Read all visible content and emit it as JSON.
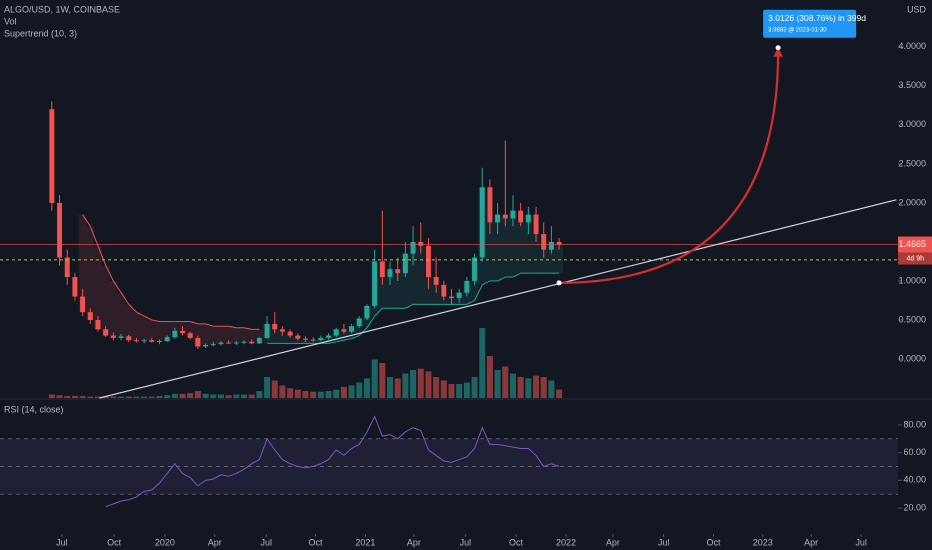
{
  "chart_data": [
    {
      "type": "candlestick",
      "title": "ALGO/USD, 1W, COINBASE",
      "volume_label": "Vol",
      "indicator_label": "Supertrend (10, 3)",
      "currency": "USD",
      "up_color": "#26a69a",
      "down_color": "#ef5350",
      "xlim": [
        -6.75,
        110.1
      ],
      "ylim": [
        -0.5,
        4.6
      ],
      "yticks": [
        {
          "value": 0,
          "label": "0.0000"
        },
        {
          "value": 0.5,
          "label": "0.5000"
        },
        {
          "value": 1,
          "label": "1.0000"
        },
        {
          "value": 1.5,
          "label": "1.5000"
        },
        {
          "value": 2,
          "label": "2.0000"
        },
        {
          "value": 2.5,
          "label": "2.5000"
        },
        {
          "value": 3,
          "label": "3.0000"
        },
        {
          "value": 3.5,
          "label": "3.5000"
        },
        {
          "value": 4,
          "label": "4.0000"
        }
      ],
      "ohlc": [
        [
          3.2,
          3.3,
          1.9,
          2.0
        ],
        [
          2.0,
          2.1,
          1.2,
          1.3
        ],
        [
          1.3,
          1.4,
          0.95,
          1.05
        ],
        [
          1.05,
          1.1,
          0.75,
          0.8
        ],
        [
          0.8,
          0.9,
          0.55,
          0.6
        ],
        [
          0.6,
          0.65,
          0.45,
          0.5
        ],
        [
          0.5,
          0.55,
          0.35,
          0.38
        ],
        [
          0.38,
          0.42,
          0.28,
          0.3
        ],
        [
          0.3,
          0.34,
          0.24,
          0.27
        ],
        [
          0.27,
          0.32,
          0.24,
          0.29
        ],
        [
          0.29,
          0.31,
          0.22,
          0.24
        ],
        [
          0.24,
          0.27,
          0.21,
          0.23
        ],
        [
          0.23,
          0.26,
          0.2,
          0.24
        ],
        [
          0.24,
          0.27,
          0.21,
          0.22
        ],
        [
          0.22,
          0.25,
          0.19,
          0.23
        ],
        [
          0.23,
          0.3,
          0.22,
          0.28
        ],
        [
          0.28,
          0.4,
          0.26,
          0.36
        ],
        [
          0.36,
          0.42,
          0.3,
          0.33
        ],
        [
          0.33,
          0.35,
          0.25,
          0.27
        ],
        [
          0.27,
          0.3,
          0.13,
          0.16
        ],
        [
          0.16,
          0.2,
          0.14,
          0.18
        ],
        [
          0.18,
          0.22,
          0.16,
          0.19
        ],
        [
          0.19,
          0.23,
          0.17,
          0.21
        ],
        [
          0.21,
          0.24,
          0.19,
          0.2
        ],
        [
          0.2,
          0.23,
          0.18,
          0.21
        ],
        [
          0.21,
          0.24,
          0.19,
          0.22
        ],
        [
          0.22,
          0.25,
          0.19,
          0.2
        ],
        [
          0.2,
          0.28,
          0.19,
          0.27
        ],
        [
          0.27,
          0.55,
          0.26,
          0.45
        ],
        [
          0.45,
          0.6,
          0.33,
          0.38
        ],
        [
          0.38,
          0.42,
          0.3,
          0.35
        ],
        [
          0.35,
          0.38,
          0.27,
          0.3
        ],
        [
          0.3,
          0.33,
          0.24,
          0.26
        ],
        [
          0.26,
          0.29,
          0.22,
          0.25
        ],
        [
          0.25,
          0.28,
          0.22,
          0.24
        ],
        [
          0.24,
          0.3,
          0.23,
          0.27
        ],
        [
          0.27,
          0.33,
          0.25,
          0.3
        ],
        [
          0.3,
          0.4,
          0.28,
          0.38
        ],
        [
          0.38,
          0.45,
          0.32,
          0.35
        ],
        [
          0.35,
          0.45,
          0.33,
          0.42
        ],
        [
          0.42,
          0.55,
          0.4,
          0.52
        ],
        [
          0.52,
          0.7,
          0.5,
          0.68
        ],
        [
          0.68,
          1.4,
          0.65,
          1.25
        ],
        [
          1.25,
          1.9,
          0.95,
          1.05
        ],
        [
          1.05,
          1.25,
          0.95,
          1.15
        ],
        [
          1.15,
          1.3,
          1.0,
          1.1
        ],
        [
          1.1,
          1.5,
          1.05,
          1.35
        ],
        [
          1.35,
          1.7,
          1.2,
          1.5
        ],
        [
          1.5,
          1.75,
          1.35,
          1.45
        ],
        [
          1.45,
          1.55,
          0.9,
          1.05
        ],
        [
          1.05,
          1.3,
          0.85,
          0.95
        ],
        [
          0.95,
          1.0,
          0.75,
          0.8
        ],
        [
          0.8,
          0.9,
          0.7,
          0.78
        ],
        [
          0.78,
          0.9,
          0.72,
          0.85
        ],
        [
          0.85,
          1.05,
          0.8,
          1.0
        ],
        [
          1.0,
          1.35,
          0.95,
          1.3
        ],
        [
          1.3,
          2.45,
          1.25,
          2.2
        ],
        [
          2.2,
          2.3,
          1.6,
          1.75
        ],
        [
          1.75,
          2.0,
          1.6,
          1.85
        ],
        [
          1.85,
          2.8,
          1.7,
          1.8
        ],
        [
          1.8,
          2.1,
          1.7,
          1.9
        ],
        [
          1.9,
          2.0,
          1.7,
          1.75
        ],
        [
          1.75,
          1.95,
          1.6,
          1.85
        ],
        [
          1.85,
          1.95,
          1.5,
          1.6
        ],
        [
          1.6,
          1.75,
          1.3,
          1.4
        ],
        [
          1.4,
          1.7,
          1.35,
          1.5
        ],
        [
          1.5,
          1.55,
          1.4,
          1.4665
        ]
      ],
      "volume": [
        5,
        4,
        3,
        3,
        3,
        2,
        2,
        2,
        2,
        2,
        2,
        2,
        2,
        2,
        3,
        4,
        6,
        6,
        7,
        10,
        6,
        5,
        5,
        4,
        5,
        5,
        5,
        10,
        30,
        25,
        18,
        14,
        12,
        10,
        9,
        9,
        10,
        12,
        16,
        18,
        22,
        28,
        55,
        50,
        30,
        28,
        35,
        40,
        42,
        38,
        30,
        25,
        20,
        20,
        22,
        30,
        100,
        60,
        40,
        45,
        35,
        30,
        28,
        32,
        30,
        25,
        12
      ],
      "supertrend": [
        null,
        null,
        null,
        null,
        1.85,
        1.7,
        1.45,
        1.2,
        1.0,
        0.85,
        0.7,
        0.6,
        0.55,
        0.5,
        0.48,
        0.48,
        0.48,
        0.48,
        0.48,
        0.45,
        0.45,
        0.42,
        0.42,
        0.42,
        0.4,
        0.4,
        0.38,
        0.38,
        0.2,
        0.2,
        0.2,
        0.2,
        0.2,
        0.2,
        0.2,
        0.2,
        0.2,
        0.22,
        0.24,
        0.26,
        0.3,
        0.4,
        0.55,
        0.65,
        0.65,
        0.65,
        0.65,
        0.7,
        0.7,
        0.7,
        0.7,
        0.7,
        0.7,
        0.7,
        0.7,
        0.75,
        0.95,
        1.0,
        1.0,
        1.05,
        1.05,
        1.1,
        1.1,
        1.1,
        1.1,
        1.1,
        1.1
      ],
      "last_price": 1.4665,
      "countdown": "4d 9h",
      "reference_line": 1.27,
      "trendline": {
        "x": [
          6.2,
          109.9
        ],
        "y": [
          -0.5,
          2.04
        ]
      },
      "projection": {
        "x": [
          66,
          94.5
        ],
        "y": [
          0.9757,
          3.9883
        ],
        "label": "3.0126 (308.76%) in 399d",
        "sublabel": "3.9883 @ 2023-01-30"
      }
    },
    {
      "type": "line",
      "title": "RSI (14, close)",
      "color": "#7e57c2",
      "xlim": [
        -6.75,
        110.1
      ],
      "ylim": [
        2,
        98
      ],
      "yticks": [
        {
          "value": 20,
          "label": "20.00"
        },
        {
          "value": 40,
          "label": "40.00"
        },
        {
          "value": 60,
          "label": "60.00"
        },
        {
          "value": 80,
          "label": "80.00"
        }
      ],
      "band": [
        30,
        70
      ],
      "midline": 50,
      "values": [
        null,
        null,
        null,
        null,
        null,
        null,
        null,
        21,
        23,
        25,
        26,
        28,
        32,
        33,
        38,
        45,
        52,
        45,
        42,
        36,
        40,
        41,
        44,
        43,
        45,
        48,
        52,
        55,
        70,
        62,
        55,
        52,
        50,
        49,
        50,
        52,
        55,
        62,
        58,
        63,
        66,
        75,
        86,
        72,
        73,
        70,
        75,
        78,
        76,
        62,
        58,
        54,
        53,
        55,
        57,
        63,
        78,
        66,
        66,
        65,
        64,
        63,
        63,
        58,
        50,
        52,
        50
      ],
      "xticks": [
        {
          "value": 1.3,
          "label": "Jul"
        },
        {
          "value": 8.1,
          "label": "Oct"
        },
        {
          "value": 14.7,
          "label": "2020"
        },
        {
          "value": 21.2,
          "label": "Apr"
        },
        {
          "value": 27.9,
          "label": "Jul"
        },
        {
          "value": 34.3,
          "label": "Oct"
        },
        {
          "value": 40.8,
          "label": "2021"
        },
        {
          "value": 47.1,
          "label": "Apr"
        },
        {
          "value": 53.8,
          "label": "Jul"
        },
        {
          "value": 60.4,
          "label": "Oct"
        },
        {
          "value": 66.9,
          "label": "2022"
        },
        {
          "value": 73.0,
          "label": "Apr"
        },
        {
          "value": 79.6,
          "label": "Jul"
        },
        {
          "value": 86.1,
          "label": "Oct"
        },
        {
          "value": 92.5,
          "label": "2023"
        },
        {
          "value": 98.8,
          "label": "Apr"
        },
        {
          "value": 105.3,
          "label": "Jul"
        }
      ]
    }
  ]
}
